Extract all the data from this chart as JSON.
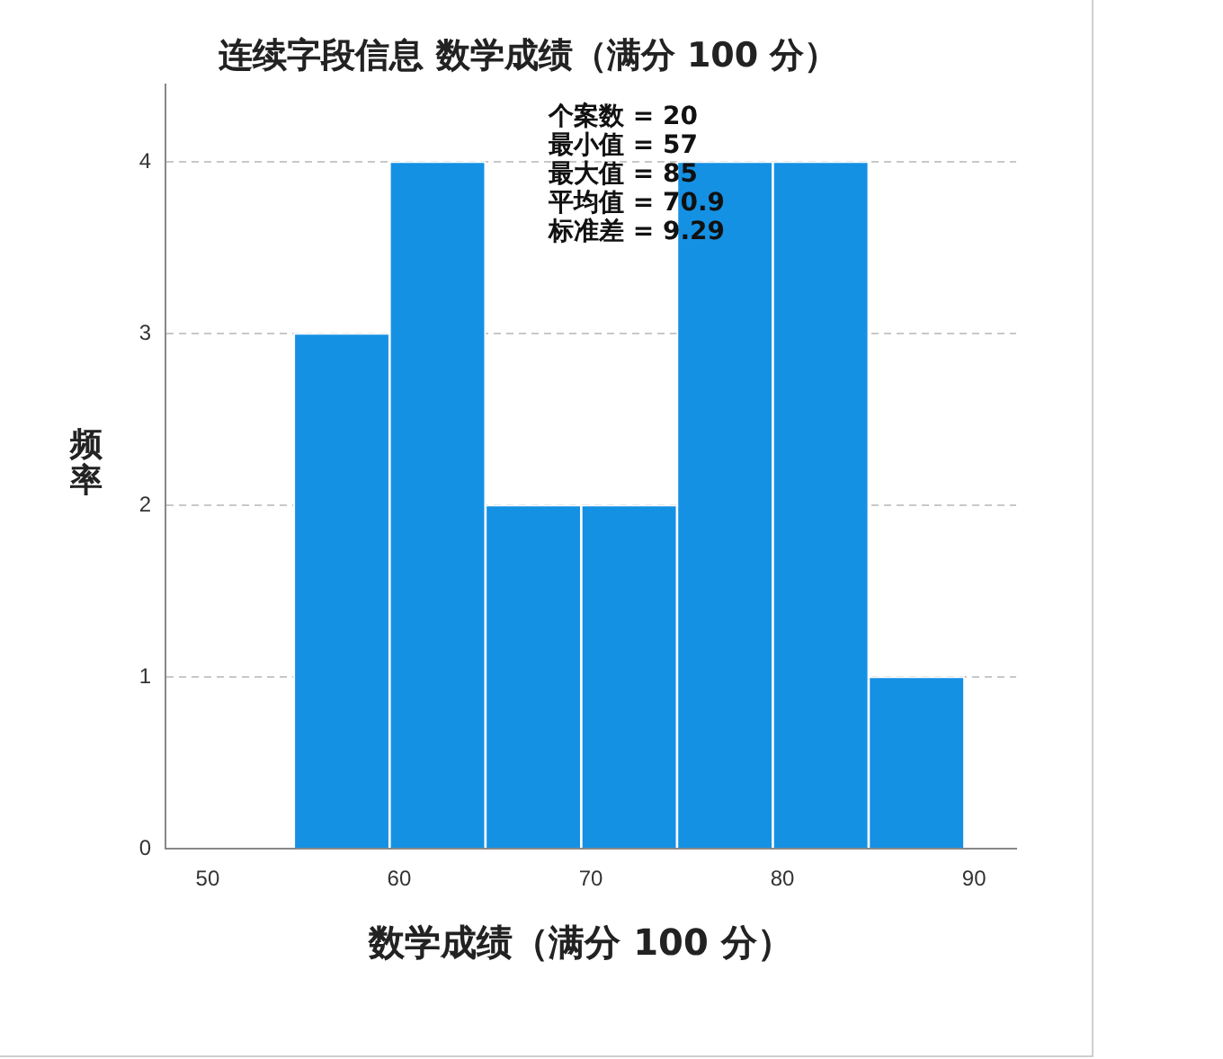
{
  "chart_data": {
    "type": "histogram",
    "title": "连续字段信息 数学成绩（满分 100 分）",
    "xlabel": "数学成绩（满分 100 分）",
    "ylabel": "频率",
    "annotations": [
      "个案数 = 20",
      "最小值 = 57",
      "最大值 = 85",
      "平均值 = 70.9",
      "标准差 = 9.29"
    ],
    "bins": [
      54.5,
      59.5,
      64.5,
      69.5,
      74.5,
      79.5,
      84.5,
      89.5
    ],
    "values": [
      3,
      4,
      2,
      2,
      4,
      4,
      1
    ],
    "color": "#1591e4",
    "xlim": [
      47.8,
      92.2
    ],
    "xticks": [
      50,
      60,
      70,
      80,
      90
    ],
    "ylim": [
      0,
      4.45
    ],
    "yticks": [
      0,
      1,
      2,
      3,
      4
    ],
    "grid": "y"
  }
}
